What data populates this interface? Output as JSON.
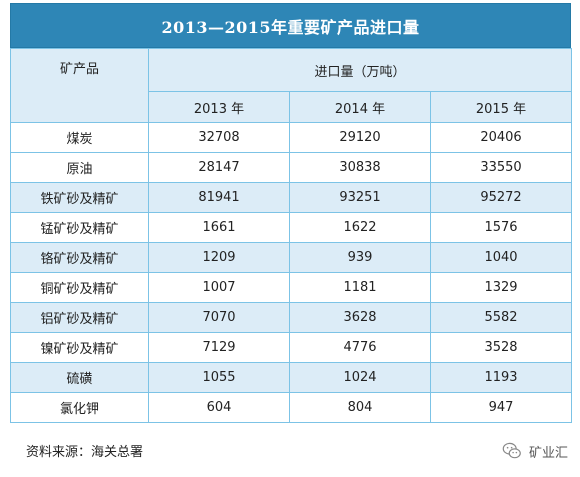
{
  "title": "2013—2015年重要矿产品进口量",
  "header": {
    "product_label": "矿产品",
    "group_label": "进口量（万吨）",
    "years": [
      "2013 年",
      "2014 年",
      "2015 年"
    ]
  },
  "rows": [
    {
      "name": "煤炭",
      "values": [
        "32708",
        "29120",
        "20406"
      ]
    },
    {
      "name": "原油",
      "values": [
        "28147",
        "30838",
        "33550"
      ]
    },
    {
      "name": "铁矿砂及精矿",
      "values": [
        "81941",
        "93251",
        "95272"
      ]
    },
    {
      "name": "锰矿砂及精矿",
      "values": [
        "1661",
        "1622",
        "1576"
      ]
    },
    {
      "name": "铬矿砂及精矿",
      "values": [
        "1209",
        "939",
        "1040"
      ]
    },
    {
      "name": "铜矿砂及精矿",
      "values": [
        "1007",
        "1181",
        "1329"
      ]
    },
    {
      "name": "铝矿砂及精矿",
      "values": [
        "7070",
        "3628",
        "5582"
      ]
    },
    {
      "name": "镍矿砂及精矿",
      "values": [
        "7129",
        "4776",
        "3528"
      ]
    },
    {
      "name": "硫磺",
      "values": [
        "1055",
        "1024",
        "1193"
      ]
    },
    {
      "name": "氯化钾",
      "values": [
        "604",
        "804",
        "947"
      ]
    }
  ],
  "footer": {
    "source": "资料来源：海关总署",
    "brand": "矿业汇",
    "brand_icon": "wechat-icon"
  },
  "colors": {
    "title_bg": "#2e86b6",
    "band_bg": "#dcecf7",
    "border": "#7cc3e6"
  }
}
